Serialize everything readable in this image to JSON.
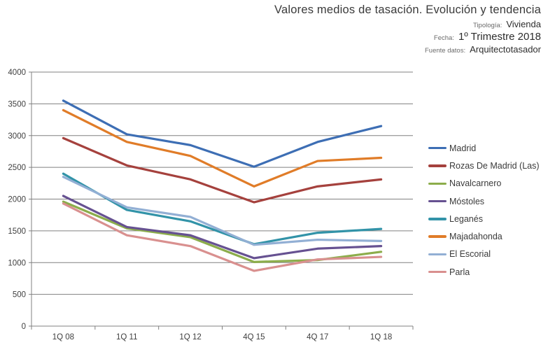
{
  "header": {
    "title": "Valores medios de tasación. Evolución y tendencia",
    "fields": [
      {
        "label": "Tipología:",
        "value": "Vivienda"
      },
      {
        "label": "Fecha:",
        "value": "1º Trimestre 2018"
      },
      {
        "label": "Fuente datos:",
        "value": "Arquitectotasador"
      }
    ]
  },
  "chart_data": {
    "type": "line",
    "categories": [
      "1Q 08",
      "1Q 11",
      "1Q 12",
      "4Q 15",
      "4Q 17",
      "1Q 18"
    ],
    "series": [
      {
        "name": "Madrid",
        "color": "#3D6EB4",
        "values": [
          3550,
          3020,
          2850,
          2510,
          2900,
          3150
        ]
      },
      {
        "name": "Rozas De Madrid (Las)",
        "color": "#A5413D",
        "values": [
          2960,
          2530,
          2310,
          1950,
          2200,
          2310
        ]
      },
      {
        "name": "Navalcarnero",
        "color": "#8CAD4B",
        "values": [
          1960,
          1540,
          1400,
          1010,
          1040,
          1170
        ]
      },
      {
        "name": "Móstoles",
        "color": "#665191",
        "values": [
          2050,
          1560,
          1430,
          1070,
          1220,
          1260
        ]
      },
      {
        "name": "Leganés",
        "color": "#3293A8",
        "values": [
          2400,
          1830,
          1650,
          1290,
          1470,
          1530
        ]
      },
      {
        "name": "Majadahonda",
        "color": "#E07C28",
        "values": [
          3400,
          2900,
          2680,
          2200,
          2600,
          2650
        ]
      },
      {
        "name": "El Escorial",
        "color": "#92AFD4",
        "values": [
          2350,
          1870,
          1720,
          1280,
          1360,
          1340
        ]
      },
      {
        "name": "Parla",
        "color": "#D9908F",
        "values": [
          1930,
          1430,
          1260,
          870,
          1050,
          1090
        ]
      }
    ],
    "title": "Valores medios de tasación. Evolución y tendencia",
    "xlabel": "",
    "ylabel": "",
    "ylim": [
      0,
      4000
    ],
    "ytick_step": 500,
    "grid": true,
    "grid_color": "#808080",
    "legend_position": "right"
  }
}
